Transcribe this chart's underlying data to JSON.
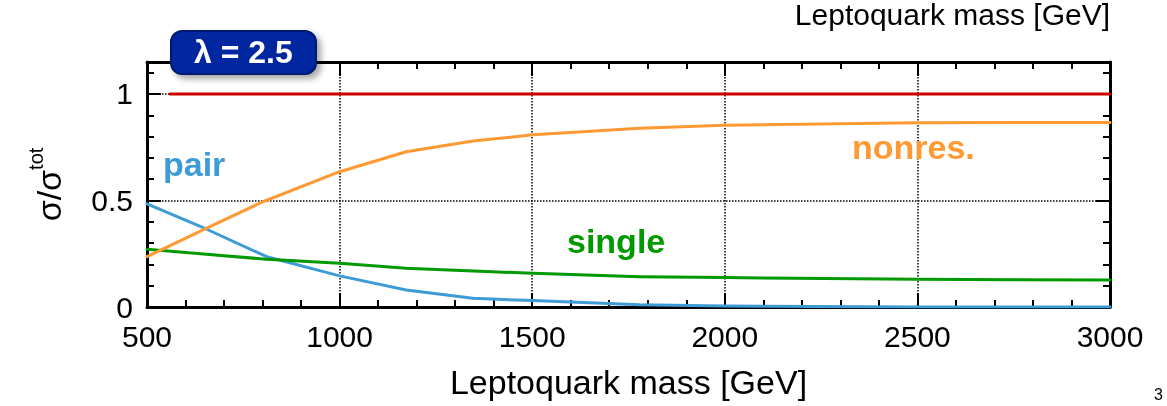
{
  "chart_data": {
    "type": "line",
    "xlabel": "Leptoquark mass [GeV]",
    "ylabel": "σ/σ$^{tot}$",
    "xlim": [
      500,
      3000
    ],
    "xticks": [
      500,
      1000,
      1500,
      2000,
      2500,
      3000
    ],
    "ylim": [
      0,
      1.15
    ],
    "yticks": [
      0,
      0.5,
      1
    ],
    "grid": true,
    "marker": "none",
    "line_style": "solid",
    "annotations": [
      "λ = 2.5",
      "Leptoquark mass [GeV]",
      "3"
    ],
    "series": [
      {
        "color": "#cc0000",
        "x": [
          560,
          3000
        ],
        "values": [
          1,
          1
        ]
      },
      {
        "name": "pair",
        "color": "#3d9bd6",
        "x": [
          500,
          655,
          811,
          1000,
          1173,
          1346,
          1502,
          1779,
          2000,
          2500,
          3000
        ],
        "values": [
          0.484,
          0.365,
          0.236,
          0.146,
          0.08,
          0.041,
          0.03,
          0.01,
          0.005,
          0,
          0
        ]
      },
      {
        "name": "single",
        "color": "#009900",
        "x": [
          500,
          811,
          1000,
          1173,
          1502,
          1779,
          2000,
          2500,
          3000
        ],
        "values": [
          0.271,
          0.224,
          0.205,
          0.182,
          0.158,
          0.142,
          0.138,
          0.13,
          0.127
        ]
      },
      {
        "name": "nonres.",
        "color": "#ff9933",
        "x": [
          500,
          655,
          801,
          1000,
          1173,
          1346,
          1502,
          1779,
          2000,
          2500,
          3000
        ],
        "values": [
          0.236,
          0.37,
          0.494,
          0.635,
          0.729,
          0.779,
          0.808,
          0.839,
          0.853,
          0.865,
          0.866
        ]
      }
    ]
  }
}
